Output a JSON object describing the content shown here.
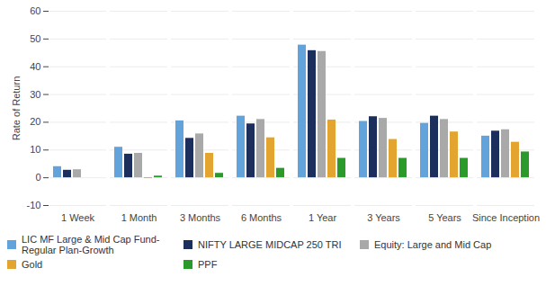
{
  "chart_data": {
    "type": "bar",
    "y_label": "Rate of Return",
    "categories": [
      "1 Week",
      "1 Month",
      "3 Months",
      "6 Months",
      "1 Year",
      "3 Years",
      "5 Years",
      "Since Inception"
    ],
    "series": [
      {
        "name": "LIC MF Large & Mid Cap Fund-Regular Plan-Growth",
        "color": "#62a3db",
        "values": [
          4,
          11,
          20.5,
          22.2,
          47.8,
          20.3,
          19.6,
          15
        ]
      },
      {
        "name": "NIFTY LARGE MIDCAP 250 TRI",
        "color": "#1c2f5c",
        "values": [
          2.7,
          8.5,
          14.2,
          19.4,
          45.8,
          22,
          22.2,
          16.8
        ]
      },
      {
        "name": "Equity: Large and Mid Cap",
        "color": "#a9a9a9",
        "values": [
          2.9,
          8.8,
          15.8,
          21,
          45.5,
          21.4,
          21,
          17.3
        ]
      },
      {
        "name": "Gold",
        "color": "#e3a530",
        "values": [
          0,
          -0.3,
          8.8,
          14.4,
          20.8,
          13.8,
          16.5,
          12.8
        ]
      },
      {
        "name": "PPF",
        "color": "#2a9a2a",
        "values": [
          0,
          0.6,
          1.6,
          3.4,
          7,
          7,
          7,
          9.3
        ]
      }
    ],
    "ylim": [
      -10,
      60
    ],
    "yticks": [
      -10,
      0,
      10,
      20,
      30,
      40,
      50,
      60
    ],
    "grid": true,
    "legend": "bottom",
    "data_labels": false
  }
}
